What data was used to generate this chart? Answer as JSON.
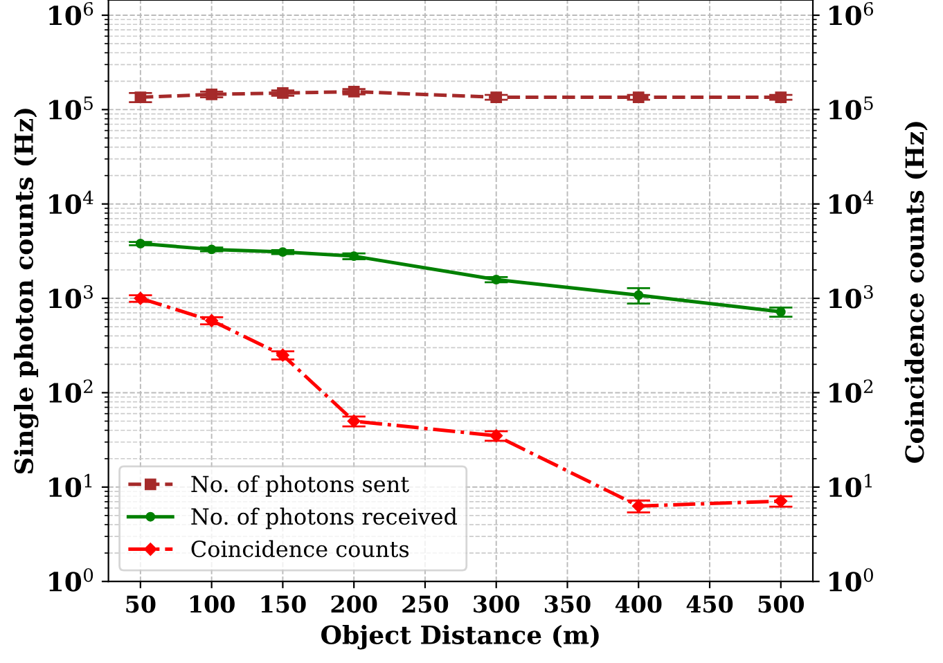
{
  "chart_data": {
    "type": "line",
    "xlabel": "Object Distance (m)",
    "ylabel": "Single photon counts (Hz)",
    "y2label": "Coincidence counts (Hz)",
    "x": [
      50,
      100,
      150,
      200,
      300,
      400,
      500
    ],
    "series": [
      {
        "name": "No. of photons sent",
        "color": "#a52a2a",
        "marker": "square",
        "line_style": "dashed",
        "values": [
          135000,
          145000,
          150000,
          155000,
          135000,
          135000,
          135000
        ],
        "errors": [
          15000,
          10000,
          10000,
          10000,
          8000,
          8000,
          8000
        ]
      },
      {
        "name": "No. of photons received",
        "color": "#008000",
        "marker": "circle",
        "line_style": "solid",
        "values": [
          3800,
          3300,
          3100,
          2800,
          1580,
          1080,
          720
        ],
        "errors": [
          150,
          150,
          150,
          200,
          100,
          200,
          80
        ]
      },
      {
        "name": "Coincidence counts",
        "color": "#ff0000",
        "marker": "diamond",
        "line_style": "dashdot",
        "values": [
          1000,
          580,
          250,
          50,
          35,
          6.3,
          7.1
        ],
        "errors": [
          80,
          50,
          25,
          6,
          4,
          0.9,
          0.9
        ]
      }
    ],
    "xlim": [
      27.5,
      522.5
    ],
    "xticks": [
      50,
      100,
      150,
      200,
      250,
      300,
      350,
      400,
      450,
      500
    ],
    "log": "y",
    "ylim": [
      1,
      1450000
    ],
    "yticks": [
      {
        "value": 1,
        "label": "10$^{0}$"
      },
      {
        "value": 10,
        "label": "10$^{1}$"
      },
      {
        "value": 100,
        "label": "10$^{2}$"
      },
      {
        "value": 1000,
        "label": "10$^{3}$"
      },
      {
        "value": 10000,
        "label": "10$^{4}$"
      },
      {
        "value": 100000,
        "label": "10$^{5}$"
      },
      {
        "value": 1000000,
        "label": "10$^{6}$"
      }
    ],
    "grid": true,
    "legend": "bottom left"
  }
}
